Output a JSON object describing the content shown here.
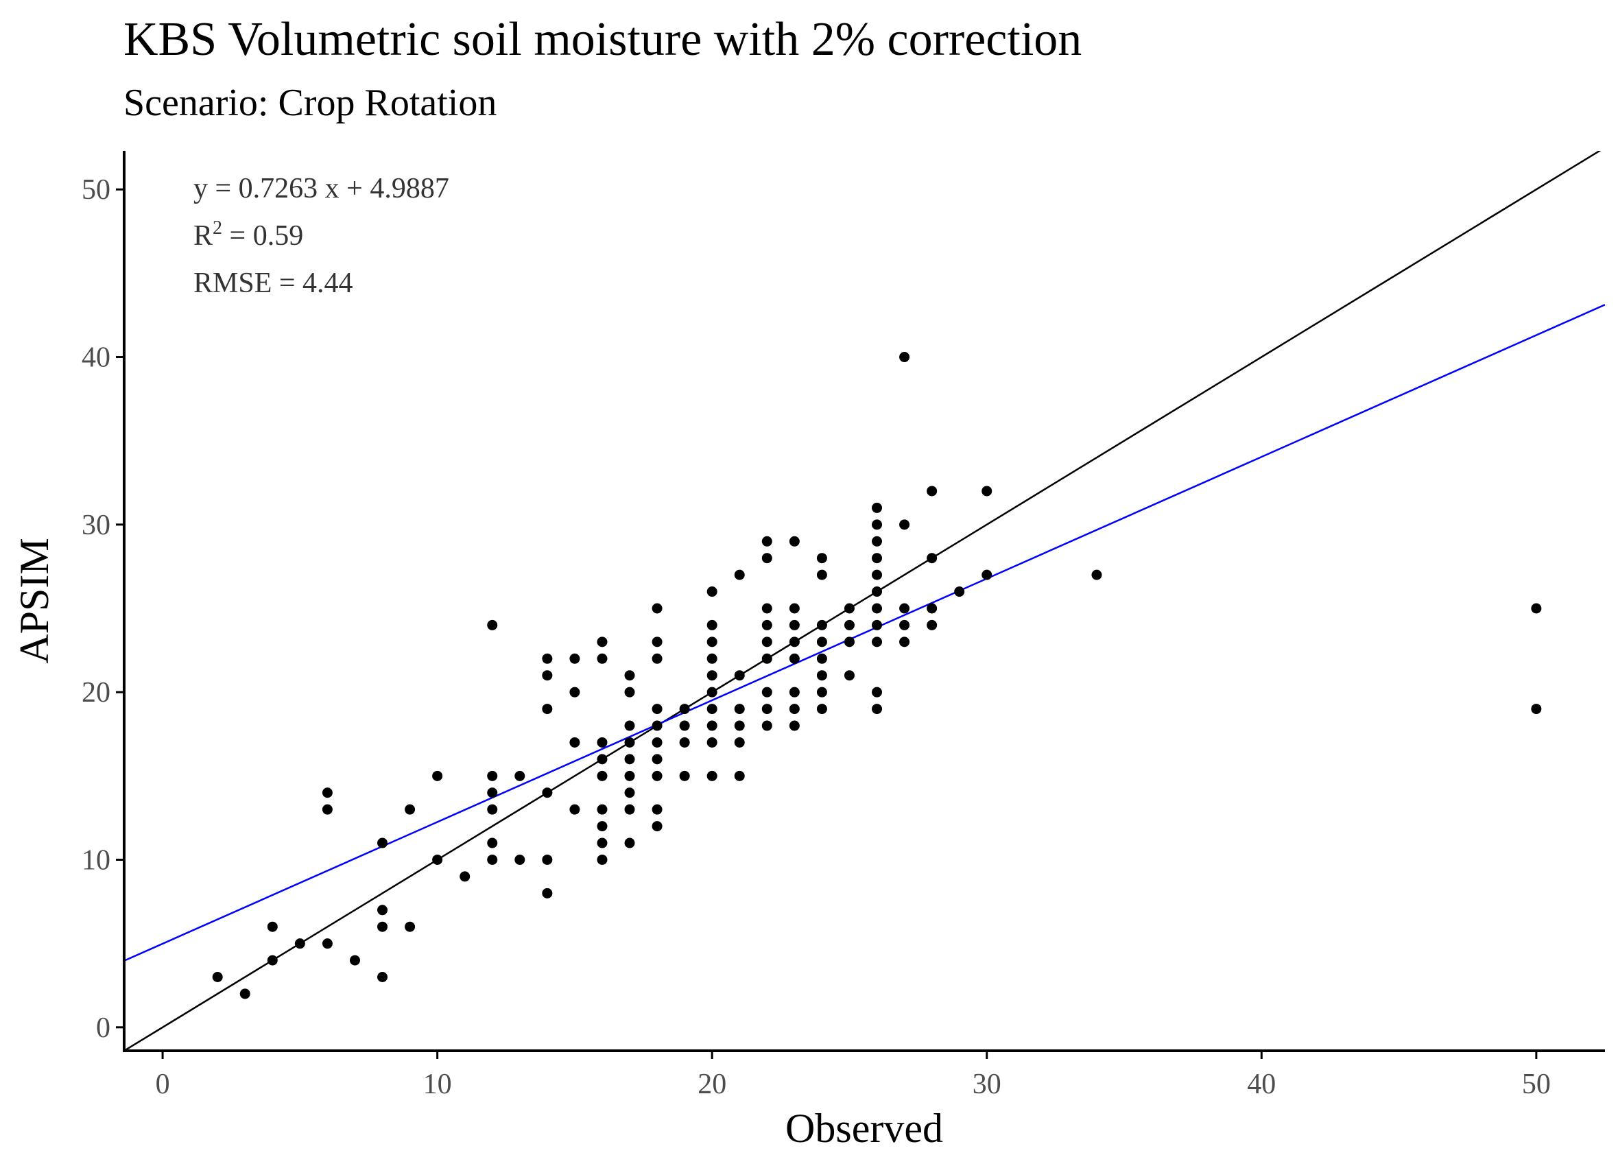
{
  "chart_data": {
    "type": "scatter",
    "title": "KBS Volumetric soil moisture with 2% correction",
    "subtitle": "Scenario: Crop Rotation",
    "xlabel": "Observed",
    "ylabel": "APSIM",
    "xlim": [
      -1.4,
      52.5
    ],
    "ylim": [
      -1.4,
      52.3
    ],
    "xticks": [
      0,
      10,
      20,
      30,
      40,
      50
    ],
    "yticks": [
      0,
      10,
      20,
      30,
      40,
      50
    ],
    "grid": false,
    "annotations": {
      "equation": "y = 0.7263 x +  4.9887",
      "r2_prefix": "R",
      "r2_sup": "2",
      "r2_rest": " = 0.59",
      "rmse": "RMSE = 4.44"
    },
    "lines": [
      {
        "type": "reference",
        "slope": 1,
        "intercept": 0,
        "color": "#000000"
      },
      {
        "type": "regression",
        "slope": 0.7263,
        "intercept": 4.9887,
        "color": "#0000ff"
      }
    ],
    "point_color": "#000000",
    "points": [
      [
        2,
        3
      ],
      [
        3,
        2
      ],
      [
        4,
        4
      ],
      [
        4,
        6
      ],
      [
        5,
        5
      ],
      [
        6,
        5
      ],
      [
        6,
        13
      ],
      [
        6,
        14
      ],
      [
        7,
        4
      ],
      [
        8,
        3
      ],
      [
        8,
        6
      ],
      [
        8,
        7
      ],
      [
        8,
        11
      ],
      [
        9,
        6
      ],
      [
        9,
        13
      ],
      [
        10,
        10
      ],
      [
        10,
        15
      ],
      [
        11,
        9
      ],
      [
        12,
        10
      ],
      [
        12,
        11
      ],
      [
        12,
        13
      ],
      [
        12,
        14
      ],
      [
        12,
        15
      ],
      [
        12,
        24
      ],
      [
        13,
        10
      ],
      [
        13,
        15
      ],
      [
        14,
        8
      ],
      [
        14,
        10
      ],
      [
        14,
        14
      ],
      [
        14,
        19
      ],
      [
        14,
        21
      ],
      [
        14,
        22
      ],
      [
        15,
        13
      ],
      [
        15,
        17
      ],
      [
        15,
        20
      ],
      [
        15,
        22
      ],
      [
        16,
        10
      ],
      [
        16,
        11
      ],
      [
        16,
        12
      ],
      [
        16,
        13
      ],
      [
        16,
        15
      ],
      [
        16,
        16
      ],
      [
        16,
        17
      ],
      [
        16,
        22
      ],
      [
        16,
        23
      ],
      [
        17,
        11
      ],
      [
        17,
        13
      ],
      [
        17,
        14
      ],
      [
        17,
        15
      ],
      [
        17,
        16
      ],
      [
        17,
        17
      ],
      [
        17,
        18
      ],
      [
        17,
        20
      ],
      [
        17,
        21
      ],
      [
        18,
        12
      ],
      [
        18,
        13
      ],
      [
        18,
        15
      ],
      [
        18,
        16
      ],
      [
        18,
        17
      ],
      [
        18,
        18
      ],
      [
        18,
        19
      ],
      [
        18,
        22
      ],
      [
        18,
        23
      ],
      [
        18,
        25
      ],
      [
        19,
        15
      ],
      [
        19,
        17
      ],
      [
        19,
        18
      ],
      [
        19,
        19
      ],
      [
        20,
        15
      ],
      [
        20,
        17
      ],
      [
        20,
        18
      ],
      [
        20,
        19
      ],
      [
        20,
        20
      ],
      [
        20,
        21
      ],
      [
        20,
        22
      ],
      [
        20,
        23
      ],
      [
        20,
        24
      ],
      [
        20,
        26
      ],
      [
        21,
        15
      ],
      [
        21,
        17
      ],
      [
        21,
        18
      ],
      [
        21,
        19
      ],
      [
        21,
        21
      ],
      [
        21,
        27
      ],
      [
        22,
        18
      ],
      [
        22,
        19
      ],
      [
        22,
        20
      ],
      [
        22,
        22
      ],
      [
        22,
        23
      ],
      [
        22,
        24
      ],
      [
        22,
        25
      ],
      [
        22,
        28
      ],
      [
        22,
        29
      ],
      [
        23,
        18
      ],
      [
        23,
        19
      ],
      [
        23,
        20
      ],
      [
        23,
        22
      ],
      [
        23,
        23
      ],
      [
        23,
        24
      ],
      [
        23,
        25
      ],
      [
        23,
        29
      ],
      [
        24,
        19
      ],
      [
        24,
        20
      ],
      [
        24,
        21
      ],
      [
        24,
        22
      ],
      [
        24,
        23
      ],
      [
        24,
        24
      ],
      [
        24,
        27
      ],
      [
        24,
        28
      ],
      [
        25,
        21
      ],
      [
        25,
        23
      ],
      [
        25,
        24
      ],
      [
        25,
        25
      ],
      [
        26,
        19
      ],
      [
        26,
        20
      ],
      [
        26,
        23
      ],
      [
        26,
        24
      ],
      [
        26,
        25
      ],
      [
        26,
        26
      ],
      [
        26,
        27
      ],
      [
        26,
        28
      ],
      [
        26,
        29
      ],
      [
        26,
        30
      ],
      [
        26,
        31
      ],
      [
        27,
        23
      ],
      [
        27,
        24
      ],
      [
        27,
        25
      ],
      [
        27,
        30
      ],
      [
        27,
        40
      ],
      [
        28,
        24
      ],
      [
        28,
        25
      ],
      [
        28,
        28
      ],
      [
        28,
        32
      ],
      [
        29,
        26
      ],
      [
        30,
        27
      ],
      [
        30,
        32
      ],
      [
        34,
        27
      ],
      [
        50,
        19
      ],
      [
        50,
        25
      ]
    ]
  }
}
